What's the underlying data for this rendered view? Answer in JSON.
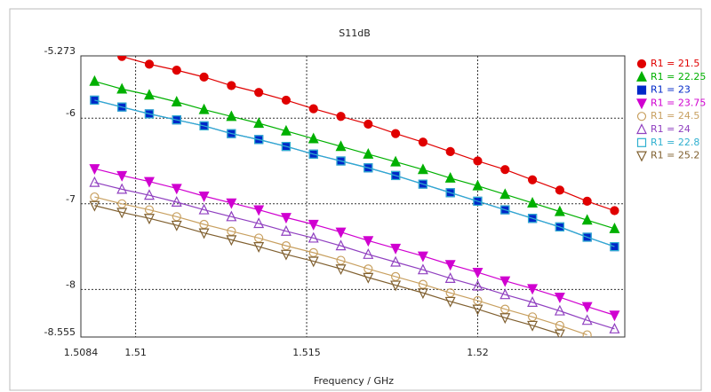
{
  "chart_data": {
    "type": "line",
    "title": "S11dB",
    "x_label": "Frequency / GHz",
    "x": [
      1.5088,
      1.5096,
      1.5104,
      1.5112,
      1.512,
      1.5128,
      1.5136,
      1.5144,
      1.5152,
      1.516,
      1.5168,
      1.5176,
      1.5184,
      1.5192,
      1.52,
      1.5208,
      1.5216,
      1.5224,
      1.5232,
      1.524
    ],
    "xlim": [
      1.5084,
      1.5243
    ],
    "xticks": [
      1.5084,
      1.51,
      1.515,
      1.52
    ],
    "ylim": [
      -8.555,
      -5.273
    ],
    "yticks": [
      -5.273,
      -6,
      -7,
      -8,
      -8.555
    ],
    "grid": true,
    "legend": "right",
    "series": [
      {
        "name": "R1 = 21.5",
        "color": "#e00000",
        "marker": "circle",
        "filled": true,
        "values": [
          null,
          -5.28,
          -5.37,
          -5.44,
          -5.52,
          -5.62,
          -5.7,
          -5.79,
          -5.89,
          -5.98,
          -6.07,
          -6.18,
          -6.28,
          -6.39,
          -6.5,
          -6.6,
          -6.72,
          -6.84,
          -6.97,
          -7.08
        ]
      },
      {
        "name": "R1 = 22.25",
        "color": "#00b000",
        "marker": "triangle-up",
        "filled": true,
        "values": [
          -5.57,
          -5.66,
          -5.73,
          -5.81,
          -5.9,
          -5.98,
          -6.06,
          -6.15,
          -6.24,
          -6.33,
          -6.42,
          -6.51,
          -6.6,
          -6.7,
          -6.79,
          -6.89,
          -6.99,
          -7.09,
          -7.19,
          -7.29
        ]
      },
      {
        "name": "R1 = 23",
        "color": "#0028c8",
        "marker": "square",
        "filled": true,
        "values": [
          -5.79,
          -5.87,
          -5.95,
          -6.02,
          -6.09,
          -6.18,
          -6.25,
          -6.33,
          -6.42,
          -6.5,
          -6.58,
          -6.67,
          -6.77,
          -6.87,
          -6.97,
          -7.07,
          -7.17,
          -7.27,
          -7.39,
          -7.5
        ]
      },
      {
        "name": "R1 = 23.75",
        "color": "#d000d0",
        "marker": "triangle-down",
        "filled": true,
        "values": [
          -6.59,
          -6.67,
          -6.74,
          -6.82,
          -6.91,
          -6.99,
          -7.07,
          -7.16,
          -7.24,
          -7.33,
          -7.43,
          -7.52,
          -7.61,
          -7.71,
          -7.8,
          -7.9,
          -7.99,
          -8.09,
          -8.2,
          -8.3
        ]
      },
      {
        "name": "R1 = 24.5",
        "color": "#c8a060",
        "marker": "circle",
        "filled": false,
        "values": [
          -6.92,
          -7.0,
          -7.07,
          -7.15,
          -7.24,
          -7.32,
          -7.4,
          -7.49,
          -7.57,
          -7.66,
          -7.76,
          -7.85,
          -7.94,
          -8.04,
          -8.13,
          -8.23,
          -8.32,
          -8.42,
          -8.53,
          null
        ]
      },
      {
        "name": "R1 = 24",
        "color": "#9040c0",
        "marker": "triangle-up",
        "filled": false,
        "values": [
          -6.75,
          -6.83,
          -6.9,
          -6.98,
          -7.07,
          -7.15,
          -7.23,
          -7.32,
          -7.4,
          -7.49,
          -7.59,
          -7.68,
          -7.77,
          -7.87,
          -7.96,
          -8.06,
          -8.15,
          -8.25,
          -8.36,
          -8.46
        ]
      },
      {
        "name": "R1 = 22.8",
        "color": "#30b0d0",
        "marker": "square",
        "filled": false,
        "values": [
          -5.79,
          -5.87,
          -5.95,
          -6.02,
          -6.09,
          -6.18,
          -6.25,
          -6.33,
          -6.42,
          -6.5,
          -6.58,
          -6.67,
          -6.77,
          -6.87,
          -6.97,
          -7.07,
          -7.17,
          -7.27,
          -7.39,
          -7.5
        ]
      },
      {
        "name": "R1 = 25.2",
        "color": "#806030",
        "marker": "triangle-down",
        "filled": false,
        "values": [
          -7.02,
          -7.1,
          -7.17,
          -7.25,
          -7.34,
          -7.42,
          -7.5,
          -7.59,
          -7.67,
          -7.76,
          -7.86,
          -7.95,
          -8.04,
          -8.14,
          -8.23,
          -8.33,
          -8.42,
          -8.52,
          null,
          null
        ]
      }
    ]
  }
}
